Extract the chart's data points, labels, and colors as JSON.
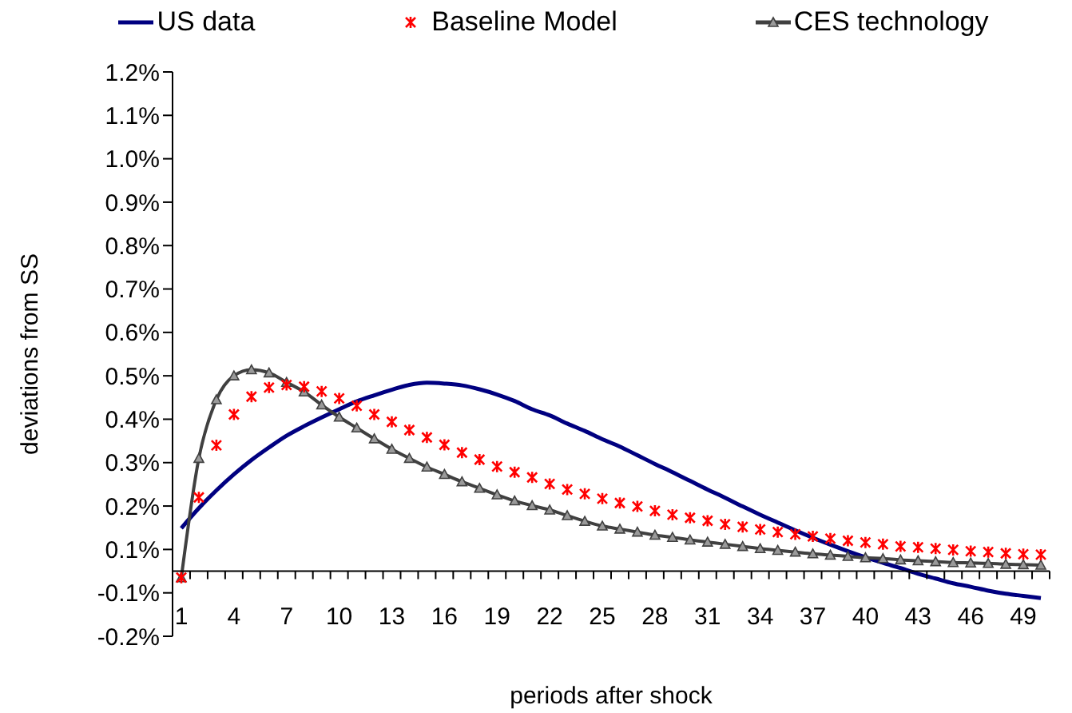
{
  "chart_data": {
    "type": "line",
    "xlabel": "periods after shock",
    "ylabel": "deviations from SS",
    "categories": [
      "1",
      null,
      null,
      "4",
      null,
      null,
      "7",
      null,
      null,
      "10",
      null,
      null,
      "13",
      null,
      null,
      "16",
      null,
      null,
      "19",
      null,
      null,
      "22",
      null,
      null,
      "25",
      null,
      null,
      "28",
      null,
      null,
      "31",
      null,
      null,
      "34",
      null,
      null,
      "37",
      null,
      null,
      "40",
      null,
      null,
      "43",
      null,
      null,
      "46",
      null,
      null,
      "49",
      null
    ],
    "ylim": [
      -0.15,
      1.15
    ],
    "yticks": [
      {
        "value": -0.15,
        "label": "-0.2%"
      },
      {
        "value": -0.05,
        "label": "-0.1%"
      },
      {
        "value": 0.05,
        "label": "0.1%"
      },
      {
        "value": 0.15,
        "label": "0.2%"
      },
      {
        "value": 0.25,
        "label": "0.3%"
      },
      {
        "value": 0.35,
        "label": "0.4%"
      },
      {
        "value": 0.45,
        "label": "0.5%"
      },
      {
        "value": 0.55,
        "label": "0.6%"
      },
      {
        "value": 0.65,
        "label": "0.7%"
      },
      {
        "value": 0.75,
        "label": "0.8%"
      },
      {
        "value": 0.85,
        "label": "0.9%"
      },
      {
        "value": 0.95,
        "label": "1.0%"
      },
      {
        "value": 1.05,
        "label": "1.1%"
      },
      {
        "value": 1.15,
        "label": "1.2%"
      }
    ],
    "legend": "top",
    "series": [
      {
        "name": "US data",
        "type": "line",
        "marker": "none",
        "color": "#000080",
        "values": [
          0.099,
          0.145,
          0.186,
          0.223,
          0.256,
          0.285,
          0.312,
          0.334,
          0.354,
          0.373,
          0.391,
          0.405,
          0.418,
          0.429,
          0.434,
          0.432,
          0.428,
          0.419,
          0.407,
          0.392,
          0.373,
          0.359,
          0.34,
          0.323,
          0.304,
          0.287,
          0.267,
          0.247,
          0.228,
          0.208,
          0.188,
          0.169,
          0.149,
          0.13,
          0.112,
          0.094,
          0.077,
          0.061,
          0.046,
          0.032,
          0.019,
          0.007,
          -0.006,
          -0.017,
          -0.028,
          -0.036,
          -0.045,
          -0.052,
          -0.057,
          -0.062
        ]
      },
      {
        "name": "Baseline Model",
        "type": "scatter",
        "marker": "cross",
        "color": "#ff0000",
        "values": [
          -0.015,
          0.17,
          0.29,
          0.361,
          0.402,
          0.423,
          0.429,
          0.425,
          0.414,
          0.398,
          0.381,
          0.361,
          0.344,
          0.325,
          0.308,
          0.291,
          0.273,
          0.257,
          0.241,
          0.228,
          0.216,
          0.201,
          0.188,
          0.178,
          0.167,
          0.157,
          0.149,
          0.139,
          0.13,
          0.123,
          0.116,
          0.108,
          0.102,
          0.096,
          0.09,
          0.085,
          0.08,
          0.075,
          0.07,
          0.066,
          0.062,
          0.057,
          0.055,
          0.052,
          0.049,
          0.046,
          0.044,
          0.041,
          0.039,
          0.038
        ]
      },
      {
        "name": "CES technology",
        "type": "line",
        "marker": "triangle",
        "color": "#404040",
        "values": [
          -0.015,
          0.26,
          0.395,
          0.45,
          0.464,
          0.457,
          0.435,
          0.413,
          0.383,
          0.355,
          0.33,
          0.305,
          0.281,
          0.26,
          0.24,
          0.223,
          0.206,
          0.191,
          0.176,
          0.162,
          0.151,
          0.141,
          0.128,
          0.115,
          0.104,
          0.097,
          0.09,
          0.083,
          0.078,
          0.072,
          0.067,
          0.062,
          0.057,
          0.052,
          0.048,
          0.044,
          0.04,
          0.037,
          0.034,
          0.031,
          0.029,
          0.026,
          0.024,
          0.022,
          0.02,
          0.019,
          0.018,
          0.016,
          0.015,
          0.014
        ]
      }
    ]
  }
}
